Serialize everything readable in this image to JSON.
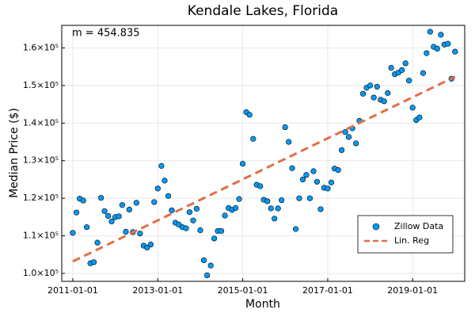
{
  "chart_data": {
    "type": "scatter",
    "title": "Kendale Lakes, Florida",
    "xlabel": "Month",
    "ylabel": "Median Price ($)",
    "annotation": "m = 454.835",
    "x": [
      "2011-01-01",
      "2011-02-01",
      "2011-03-01",
      "2011-04-01",
      "2011-05-01",
      "2011-06-01",
      "2011-07-01",
      "2011-08-01",
      "2011-09-01",
      "2011-10-01",
      "2011-11-01",
      "2011-12-01",
      "2012-01-01",
      "2012-02-01",
      "2012-03-01",
      "2012-04-01",
      "2012-05-01",
      "2012-06-01",
      "2012-07-01",
      "2012-08-01",
      "2012-09-01",
      "2012-10-01",
      "2012-11-01",
      "2012-12-01",
      "2013-01-01",
      "2013-02-01",
      "2013-03-01",
      "2013-04-01",
      "2013-05-01",
      "2013-06-01",
      "2013-07-01",
      "2013-08-01",
      "2013-09-01",
      "2013-10-01",
      "2013-11-01",
      "2013-12-01",
      "2014-01-01",
      "2014-02-01",
      "2014-03-01",
      "2014-04-01",
      "2014-05-01",
      "2014-06-01",
      "2014-07-01",
      "2014-08-01",
      "2014-09-01",
      "2014-10-01",
      "2014-11-01",
      "2014-12-01",
      "2015-01-01",
      "2015-02-01",
      "2015-03-01",
      "2015-04-01",
      "2015-05-01",
      "2015-06-01",
      "2015-07-01",
      "2015-08-01",
      "2015-09-01",
      "2015-10-01",
      "2015-11-01",
      "2015-12-01",
      "2016-01-01",
      "2016-02-01",
      "2016-03-01",
      "2016-04-01",
      "2016-05-01",
      "2016-06-01",
      "2016-07-01",
      "2016-08-01",
      "2016-09-01",
      "2016-10-01",
      "2016-11-01",
      "2016-12-01",
      "2017-01-01",
      "2017-02-01",
      "2017-03-01",
      "2017-04-01",
      "2017-05-01",
      "2017-06-01",
      "2017-07-01",
      "2017-08-01",
      "2017-09-01",
      "2017-10-01",
      "2017-11-01",
      "2017-12-01",
      "2018-01-01",
      "2018-02-01",
      "2018-03-01",
      "2018-04-01",
      "2018-05-01",
      "2018-06-01",
      "2018-07-01",
      "2018-08-01",
      "2018-09-01",
      "2018-10-01",
      "2018-11-01",
      "2018-12-01",
      "2019-01-01",
      "2019-02-01",
      "2019-03-01",
      "2019-04-01",
      "2019-05-01",
      "2019-06-01",
      "2019-07-01",
      "2019-08-01",
      "2019-09-01",
      "2019-10-01",
      "2019-11-01",
      "2019-12-01",
      "2020-01-01"
    ],
    "series": [
      {
        "name": "Zillow Data",
        "type": "scatter",
        "color": "#009af9",
        "values": [
          110800,
          116200,
          119900,
          119400,
          112300,
          102700,
          103000,
          108200,
          120100,
          116600,
          115300,
          113800,
          115000,
          115200,
          118200,
          111100,
          117000,
          111000,
          118800,
          110600,
          107400,
          106900,
          107700,
          119000,
          122600,
          128600,
          124700,
          120600,
          116800,
          113500,
          113000,
          112300,
          112000,
          116300,
          114100,
          117200,
          111500,
          103500,
          99500,
          102100,
          109300,
          111300,
          111300,
          115400,
          117400,
          116900,
          117400,
          119800,
          129200,
          142900,
          142200,
          135800,
          123600,
          123200,
          119600,
          119200,
          117300,
          114600,
          117300,
          119500,
          138900,
          135000,
          128000,
          111800,
          120000,
          125000,
          126200,
          120000,
          127200,
          124400,
          117100,
          122800,
          122600,
          124200,
          127900,
          127500,
          132800,
          137600,
          136300,
          138600,
          134600,
          140600,
          147800,
          149400,
          150000,
          146800,
          149700,
          146200,
          145800,
          148000,
          154700,
          153000,
          153400,
          154100,
          155900,
          151300,
          144100,
          140800,
          141500,
          153300,
          158600,
          164300,
          160300,
          159800,
          163500,
          160900,
          161100,
          151800,
          159000
        ]
      },
      {
        "name": "Lin. Reg",
        "type": "line",
        "color": "#e26f46",
        "x": [
          "2011-01-01",
          "2020-01-01"
        ],
        "values": [
          103200,
          152322
        ]
      }
    ],
    "xlim": [
      "2010-09-28",
      "2020-03-24"
    ],
    "xticks": [
      "2011-01-01",
      "2013-01-01",
      "2015-01-01",
      "2017-01-01",
      "2019-01-01"
    ],
    "ylim": [
      97900,
      166000
    ],
    "yticks": [
      {
        "value": 100000,
        "label": "1.0×10⁵"
      },
      {
        "value": 110000,
        "label": "1.1×10⁵"
      },
      {
        "value": 120000,
        "label": "1.2×10⁵"
      },
      {
        "value": 130000,
        "label": "1.3×10⁵"
      },
      {
        "value": 140000,
        "label": "1.4×10⁵"
      },
      {
        "value": 150000,
        "label": "1.5×10⁵"
      },
      {
        "value": 160000,
        "label": "1.6×10⁵"
      }
    ],
    "grid": true,
    "legend": "lower right"
  }
}
